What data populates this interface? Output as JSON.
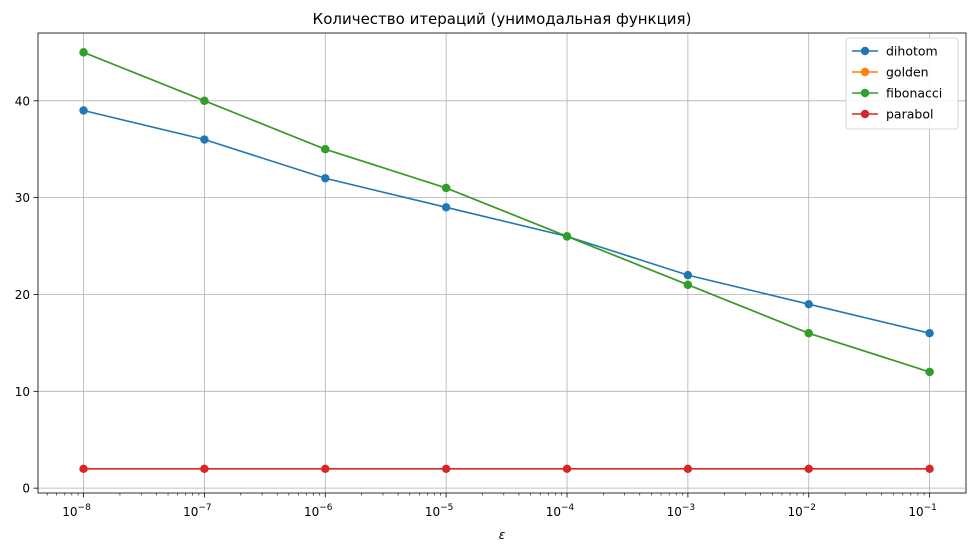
{
  "chart_data": {
    "type": "line",
    "title": "Количество итераций (унимодальная функция)",
    "xlabel": "ε",
    "ylabel": "",
    "xscale": "log",
    "x": [
      1e-08,
      1e-07,
      1e-06,
      1e-05,
      0.0001,
      0.001,
      0.01,
      0.1
    ],
    "x_tick_labels": [
      {
        "base": "10",
        "exp": "−8"
      },
      {
        "base": "10",
        "exp": "−7"
      },
      {
        "base": "10",
        "exp": "−6"
      },
      {
        "base": "10",
        "exp": "−5"
      },
      {
        "base": "10",
        "exp": "−4"
      },
      {
        "base": "10",
        "exp": "−3"
      },
      {
        "base": "10",
        "exp": "−2"
      },
      {
        "base": "10",
        "exp": "−1"
      }
    ],
    "y_ticks": [
      0,
      10,
      20,
      30,
      40
    ],
    "xlim": [
      4.2e-09,
      0.2
    ],
    "ylim": [
      -0.5,
      47
    ],
    "grid": true,
    "legend_position": "top-right",
    "series": [
      {
        "name": "dihotom",
        "color": "#1f77b4",
        "values": [
          39,
          36,
          32,
          29,
          26,
          22,
          19,
          16
        ]
      },
      {
        "name": "golden",
        "color": "#ff7f0e",
        "values": [
          45,
          40,
          35,
          31,
          26,
          21,
          16,
          12
        ]
      },
      {
        "name": "fibonacci",
        "color": "#2ca02c",
        "values": [
          45,
          40,
          35,
          31,
          26,
          21,
          16,
          12
        ]
      },
      {
        "name": "parabol",
        "color": "#d62728",
        "values": [
          2,
          2,
          2,
          2,
          2,
          2,
          2,
          2
        ]
      }
    ]
  }
}
